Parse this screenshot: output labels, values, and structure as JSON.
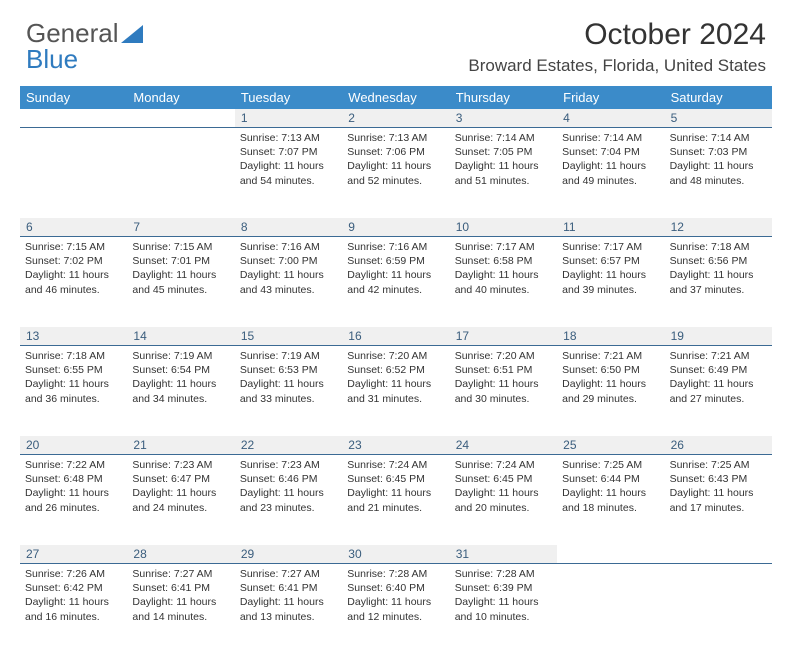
{
  "logo": {
    "word1": "General",
    "word2": "Blue"
  },
  "title": "October 2024",
  "subtitle": "Broward Estates, Florida, United States",
  "colors": {
    "header_bg": "#3b8bc9",
    "header_text": "#ffffff",
    "daynum_bg": "#f0f0f0",
    "daynum_border": "#3b6a94",
    "daynum_text": "#3a5d7d",
    "body_text": "#333333",
    "logo_gray": "#555555",
    "logo_blue": "#2f7bbf"
  },
  "day_headers": [
    "Sunday",
    "Monday",
    "Tuesday",
    "Wednesday",
    "Thursday",
    "Friday",
    "Saturday"
  ],
  "weeks": [
    {
      "nums": [
        "",
        "",
        "1",
        "2",
        "3",
        "4",
        "5"
      ],
      "cells": [
        null,
        null,
        {
          "sr": "Sunrise: 7:13 AM",
          "ss": "Sunset: 7:07 PM",
          "d1": "Daylight: 11 hours",
          "d2": "and 54 minutes."
        },
        {
          "sr": "Sunrise: 7:13 AM",
          "ss": "Sunset: 7:06 PM",
          "d1": "Daylight: 11 hours",
          "d2": "and 52 minutes."
        },
        {
          "sr": "Sunrise: 7:14 AM",
          "ss": "Sunset: 7:05 PM",
          "d1": "Daylight: 11 hours",
          "d2": "and 51 minutes."
        },
        {
          "sr": "Sunrise: 7:14 AM",
          "ss": "Sunset: 7:04 PM",
          "d1": "Daylight: 11 hours",
          "d2": "and 49 minutes."
        },
        {
          "sr": "Sunrise: 7:14 AM",
          "ss": "Sunset: 7:03 PM",
          "d1": "Daylight: 11 hours",
          "d2": "and 48 minutes."
        }
      ]
    },
    {
      "nums": [
        "6",
        "7",
        "8",
        "9",
        "10",
        "11",
        "12"
      ],
      "cells": [
        {
          "sr": "Sunrise: 7:15 AM",
          "ss": "Sunset: 7:02 PM",
          "d1": "Daylight: 11 hours",
          "d2": "and 46 minutes."
        },
        {
          "sr": "Sunrise: 7:15 AM",
          "ss": "Sunset: 7:01 PM",
          "d1": "Daylight: 11 hours",
          "d2": "and 45 minutes."
        },
        {
          "sr": "Sunrise: 7:16 AM",
          "ss": "Sunset: 7:00 PM",
          "d1": "Daylight: 11 hours",
          "d2": "and 43 minutes."
        },
        {
          "sr": "Sunrise: 7:16 AM",
          "ss": "Sunset: 6:59 PM",
          "d1": "Daylight: 11 hours",
          "d2": "and 42 minutes."
        },
        {
          "sr": "Sunrise: 7:17 AM",
          "ss": "Sunset: 6:58 PM",
          "d1": "Daylight: 11 hours",
          "d2": "and 40 minutes."
        },
        {
          "sr": "Sunrise: 7:17 AM",
          "ss": "Sunset: 6:57 PM",
          "d1": "Daylight: 11 hours",
          "d2": "and 39 minutes."
        },
        {
          "sr": "Sunrise: 7:18 AM",
          "ss": "Sunset: 6:56 PM",
          "d1": "Daylight: 11 hours",
          "d2": "and 37 minutes."
        }
      ]
    },
    {
      "nums": [
        "13",
        "14",
        "15",
        "16",
        "17",
        "18",
        "19"
      ],
      "cells": [
        {
          "sr": "Sunrise: 7:18 AM",
          "ss": "Sunset: 6:55 PM",
          "d1": "Daylight: 11 hours",
          "d2": "and 36 minutes."
        },
        {
          "sr": "Sunrise: 7:19 AM",
          "ss": "Sunset: 6:54 PM",
          "d1": "Daylight: 11 hours",
          "d2": "and 34 minutes."
        },
        {
          "sr": "Sunrise: 7:19 AM",
          "ss": "Sunset: 6:53 PM",
          "d1": "Daylight: 11 hours",
          "d2": "and 33 minutes."
        },
        {
          "sr": "Sunrise: 7:20 AM",
          "ss": "Sunset: 6:52 PM",
          "d1": "Daylight: 11 hours",
          "d2": "and 31 minutes."
        },
        {
          "sr": "Sunrise: 7:20 AM",
          "ss": "Sunset: 6:51 PM",
          "d1": "Daylight: 11 hours",
          "d2": "and 30 minutes."
        },
        {
          "sr": "Sunrise: 7:21 AM",
          "ss": "Sunset: 6:50 PM",
          "d1": "Daylight: 11 hours",
          "d2": "and 29 minutes."
        },
        {
          "sr": "Sunrise: 7:21 AM",
          "ss": "Sunset: 6:49 PM",
          "d1": "Daylight: 11 hours",
          "d2": "and 27 minutes."
        }
      ]
    },
    {
      "nums": [
        "20",
        "21",
        "22",
        "23",
        "24",
        "25",
        "26"
      ],
      "cells": [
        {
          "sr": "Sunrise: 7:22 AM",
          "ss": "Sunset: 6:48 PM",
          "d1": "Daylight: 11 hours",
          "d2": "and 26 minutes."
        },
        {
          "sr": "Sunrise: 7:23 AM",
          "ss": "Sunset: 6:47 PM",
          "d1": "Daylight: 11 hours",
          "d2": "and 24 minutes."
        },
        {
          "sr": "Sunrise: 7:23 AM",
          "ss": "Sunset: 6:46 PM",
          "d1": "Daylight: 11 hours",
          "d2": "and 23 minutes."
        },
        {
          "sr": "Sunrise: 7:24 AM",
          "ss": "Sunset: 6:45 PM",
          "d1": "Daylight: 11 hours",
          "d2": "and 21 minutes."
        },
        {
          "sr": "Sunrise: 7:24 AM",
          "ss": "Sunset: 6:45 PM",
          "d1": "Daylight: 11 hours",
          "d2": "and 20 minutes."
        },
        {
          "sr": "Sunrise: 7:25 AM",
          "ss": "Sunset: 6:44 PM",
          "d1": "Daylight: 11 hours",
          "d2": "and 18 minutes."
        },
        {
          "sr": "Sunrise: 7:25 AM",
          "ss": "Sunset: 6:43 PM",
          "d1": "Daylight: 11 hours",
          "d2": "and 17 minutes."
        }
      ]
    },
    {
      "nums": [
        "27",
        "28",
        "29",
        "30",
        "31",
        "",
        ""
      ],
      "cells": [
        {
          "sr": "Sunrise: 7:26 AM",
          "ss": "Sunset: 6:42 PM",
          "d1": "Daylight: 11 hours",
          "d2": "and 16 minutes."
        },
        {
          "sr": "Sunrise: 7:27 AM",
          "ss": "Sunset: 6:41 PM",
          "d1": "Daylight: 11 hours",
          "d2": "and 14 minutes."
        },
        {
          "sr": "Sunrise: 7:27 AM",
          "ss": "Sunset: 6:41 PM",
          "d1": "Daylight: 11 hours",
          "d2": "and 13 minutes."
        },
        {
          "sr": "Sunrise: 7:28 AM",
          "ss": "Sunset: 6:40 PM",
          "d1": "Daylight: 11 hours",
          "d2": "and 12 minutes."
        },
        {
          "sr": "Sunrise: 7:28 AM",
          "ss": "Sunset: 6:39 PM",
          "d1": "Daylight: 11 hours",
          "d2": "and 10 minutes."
        },
        null,
        null
      ]
    }
  ]
}
